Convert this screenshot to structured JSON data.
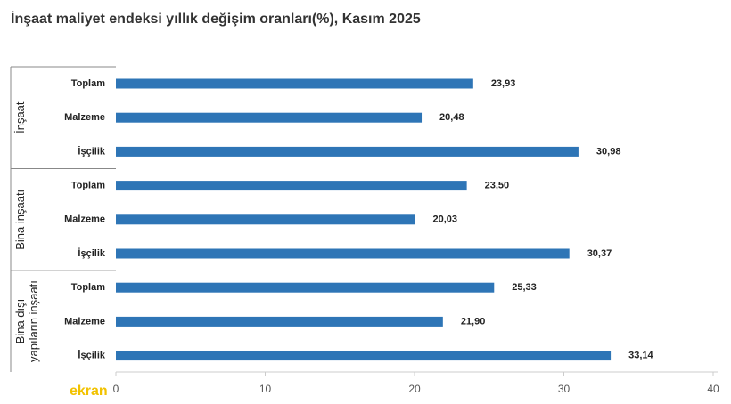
{
  "chart_data": {
    "type": "bar",
    "title": "İnşaat maliyet endeksi yıllık değişim oranları(%), Kasım 2025",
    "groups": [
      {
        "label": [
          "İnşaat"
        ],
        "categories": [
          "Toplam",
          "Malzeme",
          "İşçilik"
        ],
        "values": [
          23.93,
          20.48,
          30.98
        ],
        "value_labels": [
          "23,93",
          "20,48",
          "30,98"
        ]
      },
      {
        "label": [
          "Bina inşaatı"
        ],
        "categories": [
          "Toplam",
          "Malzeme",
          "İşçilik"
        ],
        "values": [
          23.5,
          20.03,
          30.37
        ],
        "value_labels": [
          "23,50",
          "20,03",
          "30,37"
        ]
      },
      {
        "label": [
          "Bina dışı",
          "yapıların inşaatı"
        ],
        "categories": [
          "Toplam",
          "Malzeme",
          "İşçilik"
        ],
        "values": [
          25.33,
          21.9,
          33.14
        ],
        "value_labels": [
          "25,33",
          "21,90",
          "33,14"
        ]
      }
    ],
    "color": "#2e75b6",
    "xlim": [
      0,
      40
    ],
    "xticks": [
      0,
      10,
      20,
      30,
      40
    ],
    "watermark": "ekran"
  }
}
